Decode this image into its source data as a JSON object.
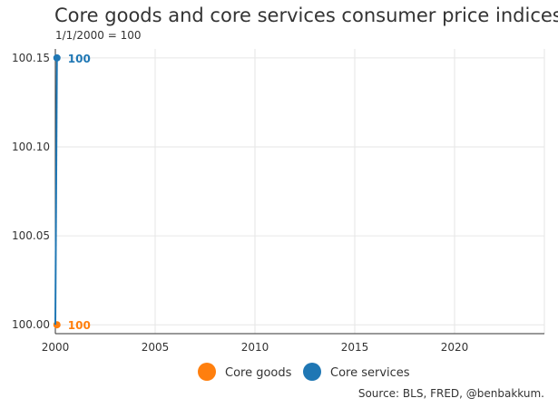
{
  "title": "Core goods and core services consumer price indices",
  "subtitle": "1/1/2000 = 100",
  "source": "Source: BLS, FRED, @benbakkum.",
  "colors": {
    "core_goods": "#ff7f0e",
    "core_services": "#1f77b4",
    "grid": "#e6e6e6",
    "axis": "#333333"
  },
  "chart_data": {
    "type": "line",
    "title": "Core goods and core services consumer price indices",
    "subtitle": "1/1/2000 = 100",
    "xlim": [
      2000,
      2024.5
    ],
    "ylim": [
      99.995,
      100.155
    ],
    "x_ticks": [
      2000,
      2005,
      2010,
      2015,
      2020
    ],
    "x_tick_labels": [
      "2000",
      "2005",
      "2010",
      "2015",
      "2020"
    ],
    "y_ticks": [
      100.0,
      100.05,
      100.1,
      100.15
    ],
    "y_tick_labels": [
      "100.00",
      "100.05",
      "100.10",
      "100.15"
    ],
    "grid": true,
    "legend": "bottom",
    "series": [
      {
        "name": "Core goods",
        "color": "#ff7f0e",
        "x": [
          2000.0,
          2000.08
        ],
        "y": [
          100.0,
          100.0
        ],
        "end_label": "100"
      },
      {
        "name": "Core services",
        "color": "#1f77b4",
        "x": [
          2000.0,
          2000.08
        ],
        "y": [
          100.0,
          100.15
        ],
        "end_label": "100"
      }
    ]
  }
}
